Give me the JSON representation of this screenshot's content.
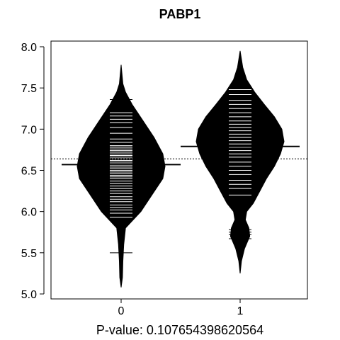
{
  "chart_data": {
    "type": "beanplot",
    "title": "PABP1",
    "xlabel": "P-value: 0.107654398620564",
    "ylabel": "",
    "ylim": [
      5.0,
      8.0
    ],
    "yticks": [
      "5.0",
      "5.5",
      "6.0",
      "6.5",
      "7.0",
      "7.5",
      "8.0"
    ],
    "categories": [
      "0",
      "1"
    ],
    "overall_mean": 6.64,
    "groups": [
      {
        "name": "0",
        "mean": 6.57,
        "range": [
          5.08,
          7.78
        ],
        "density": [
          [
            5.08,
            0.0
          ],
          [
            5.2,
            0.03
          ],
          [
            5.4,
            0.04
          ],
          [
            5.6,
            0.06
          ],
          [
            5.8,
            0.1
          ],
          [
            6.0,
            0.45
          ],
          [
            6.2,
            0.7
          ],
          [
            6.4,
            0.95
          ],
          [
            6.55,
            1.0
          ],
          [
            6.7,
            0.95
          ],
          [
            6.9,
            0.75
          ],
          [
            7.1,
            0.5
          ],
          [
            7.3,
            0.25
          ],
          [
            7.45,
            0.1
          ],
          [
            7.55,
            0.04
          ],
          [
            7.78,
            0.0
          ]
        ],
        "observations": [
          5.5,
          5.93,
          5.98,
          6.02,
          6.05,
          6.08,
          6.12,
          6.15,
          6.18,
          6.22,
          6.25,
          6.28,
          6.31,
          6.34,
          6.37,
          6.4,
          6.42,
          6.44,
          6.46,
          6.48,
          6.5,
          6.52,
          6.54,
          6.56,
          6.58,
          6.6,
          6.62,
          6.64,
          6.66,
          6.68,
          6.7,
          6.72,
          6.74,
          6.76,
          6.78,
          6.8,
          6.84,
          6.88,
          6.95,
          7.02,
          7.08,
          7.12,
          7.16,
          7.2,
          7.36
        ]
      },
      {
        "name": "1",
        "mean": 6.79,
        "range": [
          5.25,
          7.95
        ],
        "density": [
          [
            5.25,
            0.0
          ],
          [
            5.4,
            0.03
          ],
          [
            5.55,
            0.1
          ],
          [
            5.7,
            0.22
          ],
          [
            5.8,
            0.2
          ],
          [
            5.9,
            0.12
          ],
          [
            6.0,
            0.15
          ],
          [
            6.1,
            0.3
          ],
          [
            6.25,
            0.45
          ],
          [
            6.4,
            0.6
          ],
          [
            6.55,
            0.78
          ],
          [
            6.7,
            0.92
          ],
          [
            6.85,
            1.0
          ],
          [
            7.0,
            0.95
          ],
          [
            7.15,
            0.78
          ],
          [
            7.3,
            0.55
          ],
          [
            7.45,
            0.33
          ],
          [
            7.6,
            0.15
          ],
          [
            7.75,
            0.06
          ],
          [
            7.95,
            0.0
          ]
        ],
        "observations": [
          5.67,
          5.72,
          5.75,
          5.78,
          6.2,
          6.28,
          6.33,
          6.38,
          6.45,
          6.5,
          6.55,
          6.6,
          6.66,
          6.7,
          6.74,
          6.78,
          6.82,
          6.86,
          6.9,
          6.94,
          6.98,
          7.02,
          7.06,
          7.1,
          7.15,
          7.2,
          7.25,
          7.3,
          7.35,
          7.42,
          7.48
        ]
      }
    ]
  }
}
